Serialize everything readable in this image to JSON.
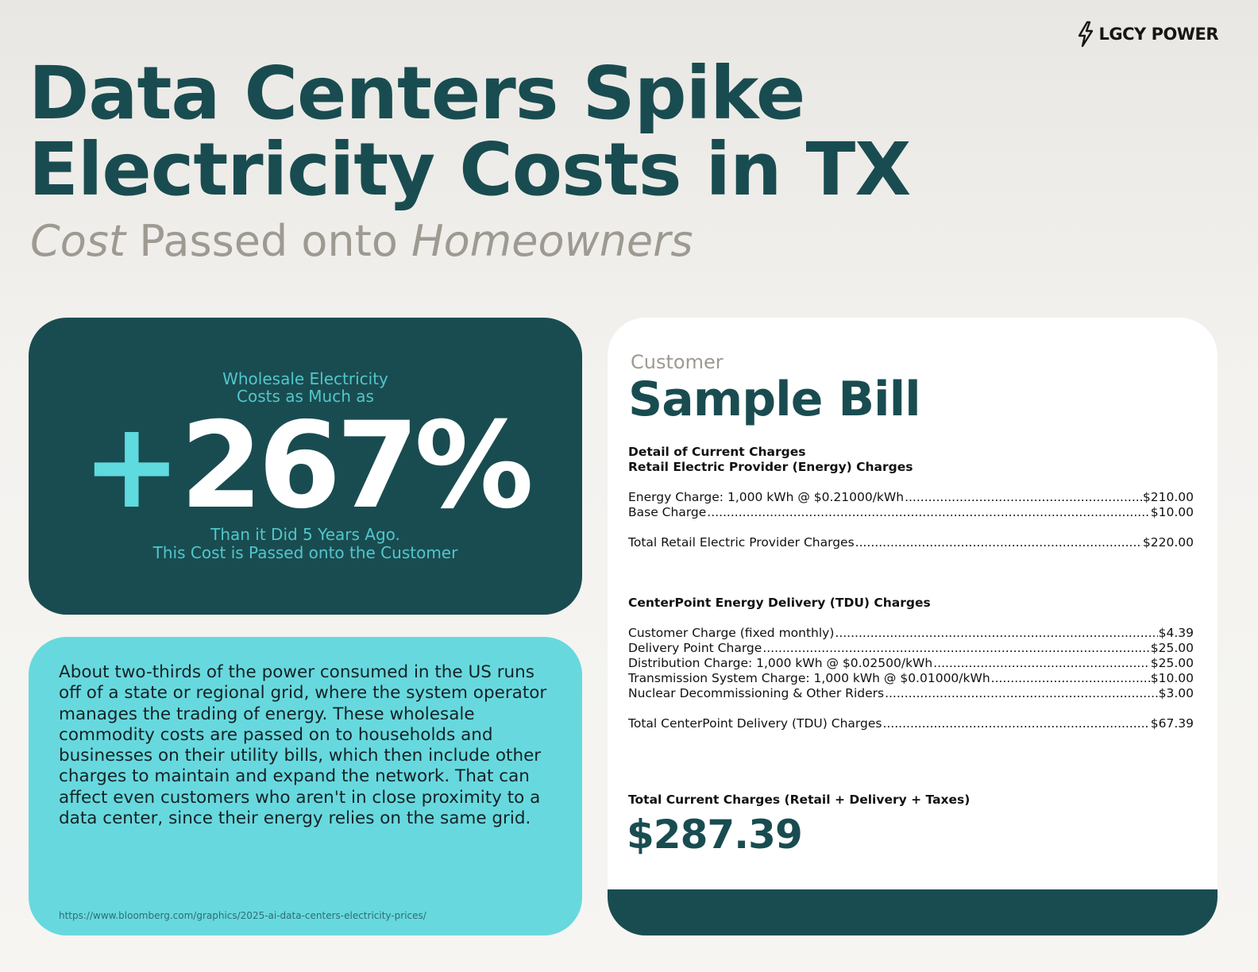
{
  "brand": {
    "name": "LGCY POWER"
  },
  "header": {
    "title_line1": "Data Centers Spike",
    "title_line2": "Electricity Costs in TX",
    "subtitle_part1": "Cost",
    "subtitle_part2": " Passed onto ",
    "subtitle_part3": "Homeowners"
  },
  "stat": {
    "pre_line1": "Wholesale Electricity",
    "pre_line2": "Costs as Much as",
    "plus": "+",
    "value": "267%",
    "post_line1": "Than it Did 5 Years Ago.",
    "post_line2": "This Cost is Passed onto the Customer"
  },
  "info": {
    "text": "About two-thirds of the power consumed in the US runs off of a state or regional grid, where the system operator manages the trading of energy. These wholesale commodity costs are passed on to households and businesses on their utility bills, which then include other charges to maintain and expand the network. That can affect even customers who aren't in close proximity to a data center, since their energy relies on the same grid.",
    "source_url": "https://www.bloomberg.com/graphics/2025-ai-data-centers-electricity-prices/"
  },
  "bill": {
    "kicker": "Customer",
    "heading": "Sample Bill",
    "section1_title1": "Detail of Current Charges",
    "section1_title2": "Retail Electric Provider (Energy) Charges",
    "retail_lines": [
      {
        "label": "Energy Charge: 1,000 kWh @ $0.21000/kWh",
        "amount": "$210.00"
      },
      {
        "label": "Base Charge",
        "amount": "$10.00"
      }
    ],
    "retail_total": {
      "label": "Total Retail Electric Provider Charges",
      "amount": "$220.00"
    },
    "section2_title": "CenterPoint Energy Delivery (TDU) Charges",
    "delivery_lines": [
      {
        "label": "Customer Charge (fixed monthly)",
        "amount": "$4.39"
      },
      {
        "label": "Delivery Point Charge",
        "amount": "$25.00"
      },
      {
        "label": "Distribution Charge: 1,000 kWh @ $0.02500/kWh",
        "amount": "$25.00"
      },
      {
        "label": "Transmission System Charge: 1,000 kWh @ $0.01000/kWh",
        "amount": "$10.00"
      },
      {
        "label": "Nuclear Decommissioning & Other Riders",
        "amount": "$3.00"
      }
    ],
    "delivery_total": {
      "label": "Total CenterPoint Delivery (TDU) Charges",
      "amount": "$67.39"
    },
    "total_label": "Total Current Charges (Retail + Delivery + Taxes)",
    "total_value": "$287.39"
  }
}
